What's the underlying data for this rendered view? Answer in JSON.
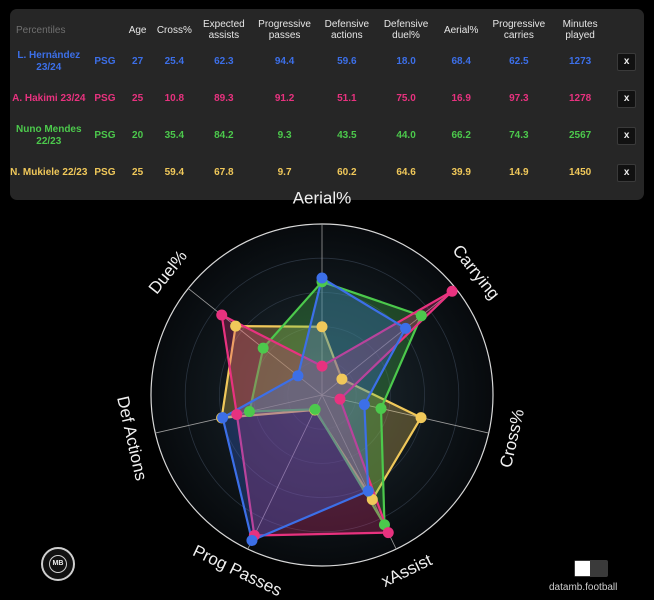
{
  "table": {
    "header_label": "Percentiles",
    "columns": [
      {
        "label": "Age"
      },
      {
        "label": "Cross%"
      },
      {
        "label": "Expected assists"
      },
      {
        "label": "Progressive passes"
      },
      {
        "label": "Defensive actions"
      },
      {
        "label": "Defensive duel%"
      },
      {
        "label": "Aerial%"
      },
      {
        "label": "Progressive carries"
      },
      {
        "label": "Minutes played"
      }
    ],
    "remove_label": "x",
    "players": [
      {
        "name": "L. Hernández 23/24",
        "color": "#3c6fe8",
        "team": "PSG",
        "cells": [
          "27",
          "25.4",
          "62.3",
          "94.4",
          "59.6",
          "18.0",
          "68.4",
          "62.5",
          "1273"
        ]
      },
      {
        "name": "A. Hakimi 23/24",
        "color": "#e8327f",
        "team": "PSG",
        "cells": [
          "25",
          "10.8",
          "89.3",
          "91.2",
          "51.1",
          "75.0",
          "16.9",
          "97.3",
          "1278"
        ]
      },
      {
        "name": "Nuno Mendes 22/23",
        "color": "#4cc94c",
        "team": "PSG",
        "cells": [
          "20",
          "35.4",
          "84.2",
          "9.3",
          "43.5",
          "44.0",
          "66.2",
          "74.3",
          "2567"
        ]
      },
      {
        "name": "N. Mukiele 22/23",
        "color": "#f0c85a",
        "team": "PSG",
        "cells": [
          "25",
          "59.4",
          "67.8",
          "9.7",
          "60.2",
          "64.6",
          "39.9",
          "14.9",
          "1450"
        ]
      }
    ]
  },
  "chart_data": {
    "type": "radar",
    "axes": [
      "Aerial%",
      "Carrying",
      "Cross%",
      "xAssist",
      "Prog Passes",
      "Def Actions",
      "Duel%"
    ],
    "range": [
      0,
      100
    ],
    "rings": [
      20,
      40,
      60,
      80,
      100
    ],
    "series": [
      {
        "name": "L. Hernández 23/24",
        "color": "#3c6fe8",
        "values": [
          68.4,
          62.5,
          25.4,
          62.3,
          94.4,
          59.6,
          18.0
        ]
      },
      {
        "name": "A. Hakimi 23/24",
        "color": "#e8327f",
        "values": [
          16.9,
          97.3,
          10.8,
          89.3,
          91.2,
          51.1,
          75.0
        ]
      },
      {
        "name": "Nuno Mendes 22/23",
        "color": "#4cc94c",
        "values": [
          66.2,
          74.3,
          35.4,
          84.2,
          9.3,
          43.5,
          44.0
        ]
      },
      {
        "name": "N. Mukiele 22/23",
        "color": "#f0c85a",
        "values": [
          39.9,
          14.9,
          59.4,
          67.8,
          9.7,
          60.2,
          64.6
        ]
      }
    ]
  },
  "footer": {
    "logo_text": "MB",
    "brand": "datamb.football"
  }
}
